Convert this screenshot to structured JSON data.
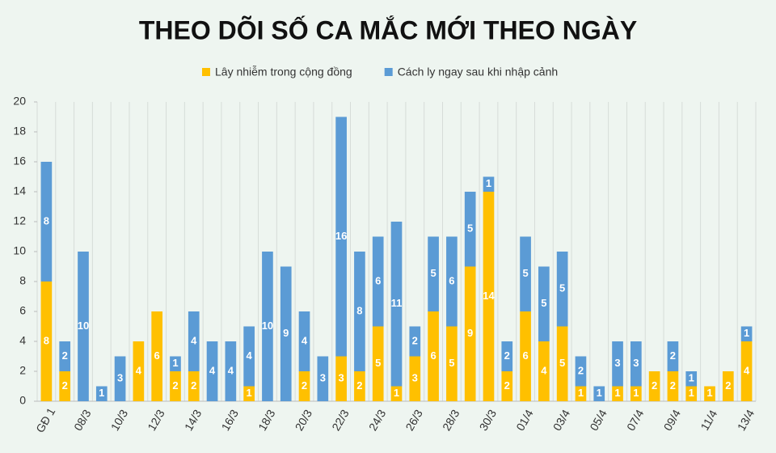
{
  "chart_data": {
    "type": "stacked-bar",
    "title": "THEO DÕI SỐ CA MẮC MỚI THEO NGÀY",
    "categories": [
      "GĐ 1",
      null,
      "08/3",
      null,
      "10/3",
      null,
      "12/3",
      null,
      "14/3",
      null,
      "16/3",
      null,
      "18/3",
      null,
      "20/3",
      null,
      "22/3",
      null,
      "24/3",
      null,
      "26/3",
      null,
      "28/3",
      null,
      "30/3",
      null,
      "01/4",
      null,
      "03/4",
      null,
      "05/4",
      null,
      "07/4",
      null,
      "09/4",
      null,
      "11/4",
      null,
      "13/4"
    ],
    "series": [
      {
        "name": "Lây nhiễm trong cộng đồng",
        "color": "#ffc000",
        "values": [
          8,
          2,
          0,
          0,
          0,
          4,
          6,
          2,
          2,
          0,
          0,
          1,
          0,
          0,
          2,
          0,
          3,
          2,
          5,
          1,
          3,
          6,
          5,
          9,
          14,
          2,
          6,
          4,
          5,
          1,
          0,
          1,
          1,
          2,
          2,
          1,
          1,
          2,
          4
        ]
      },
      {
        "name": "Cách ly ngay sau khi nhập cảnh",
        "color": "#5b9bd5",
        "values": [
          8,
          2,
          10,
          1,
          3,
          0,
          0,
          1,
          4,
          4,
          4,
          4,
          10,
          9,
          4,
          3,
          16,
          8,
          6,
          11,
          2,
          5,
          6,
          5,
          1,
          2,
          5,
          5,
          5,
          2,
          1,
          3,
          3,
          0,
          2,
          1,
          0,
          0,
          1
        ]
      }
    ],
    "ylim": [
      0,
      20
    ],
    "yticks": [
      0,
      2,
      4,
      6,
      8,
      10,
      12,
      14,
      16,
      18,
      20
    ],
    "legend": "top"
  }
}
